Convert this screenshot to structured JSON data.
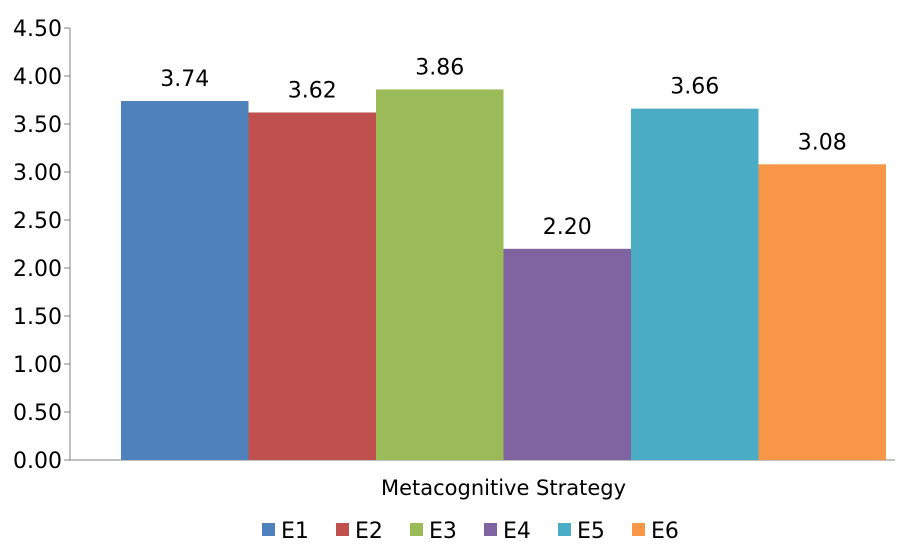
{
  "chart_data": {
    "type": "bar",
    "categories": [
      "Metacognitive Strategy"
    ],
    "series": [
      {
        "name": "E1",
        "values": [
          3.74
        ],
        "color": "#4F81BD"
      },
      {
        "name": "E2",
        "values": [
          3.62
        ],
        "color": "#C0504D"
      },
      {
        "name": "E3",
        "values": [
          3.86
        ],
        "color": "#9BBB59"
      },
      {
        "name": "E4",
        "values": [
          2.2
        ],
        "color": "#8064A2"
      },
      {
        "name": "E5",
        "values": [
          3.66
        ],
        "color": "#4BACC6"
      },
      {
        "name": "E6",
        "values": [
          3.08
        ],
        "color": "#F79646"
      }
    ],
    "data_labels": [
      "3.74",
      "3.62",
      "3.86",
      "2.20",
      "3.66",
      "3.08"
    ],
    "y_ticks": [
      "0.00",
      "0.50",
      "1.00",
      "1.50",
      "2.00",
      "2.50",
      "3.00",
      "3.50",
      "4.00",
      "4.50"
    ],
    "ylim": [
      0,
      4.5
    ],
    "grid": false,
    "legend_position": "bottom",
    "title": "",
    "xlabel": "",
    "ylabel": ""
  }
}
